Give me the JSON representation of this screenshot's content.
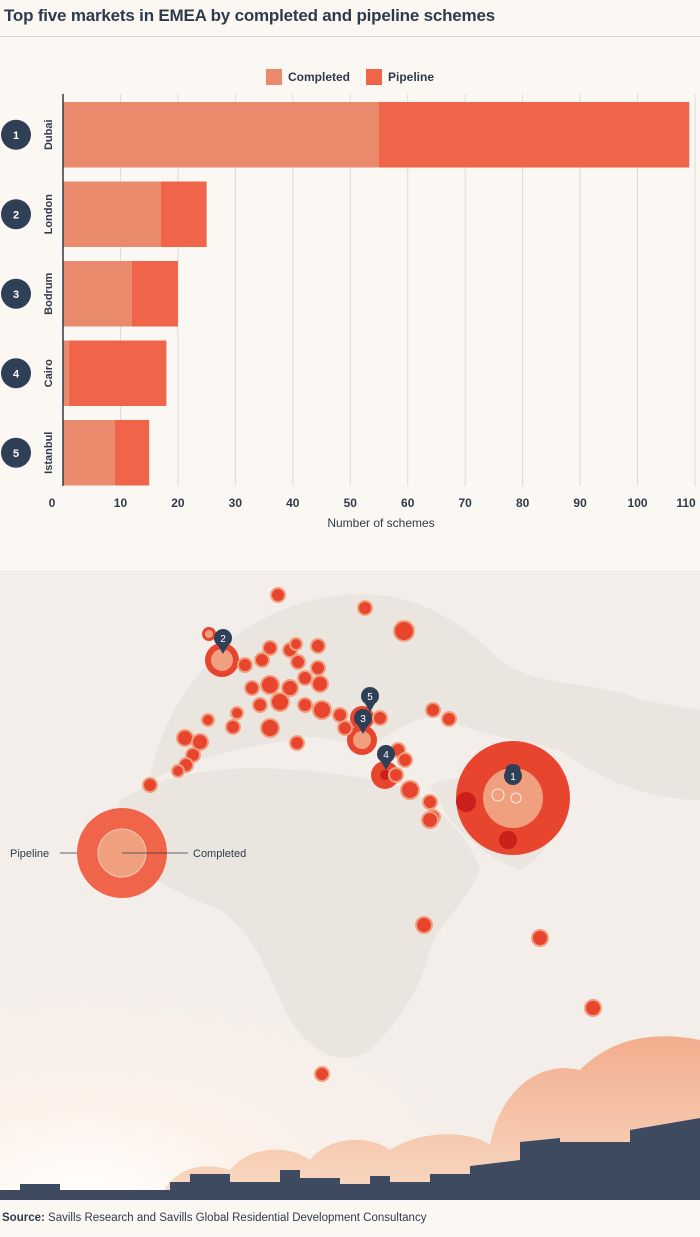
{
  "title": "Top five markets in EMEA by completed and pipeline schemes",
  "legend": {
    "completed": "Completed",
    "pipeline": "Pipeline"
  },
  "colors": {
    "completed": "#e98a6c",
    "pipeline": "#f0644a",
    "badge": "#2f3f56",
    "grid": "#dddbd8"
  },
  "chart_data": {
    "type": "bar",
    "orientation": "horizontal",
    "stacked": true,
    "categories": [
      "Dubai",
      "London",
      "Bodrum",
      "Cairo",
      "Istanbul"
    ],
    "ranks": [
      "1",
      "2",
      "3",
      "4",
      "5"
    ],
    "series": [
      {
        "name": "Completed",
        "values": [
          55,
          17,
          12,
          1,
          9
        ]
      },
      {
        "name": "Pipeline",
        "values": [
          54,
          8,
          8,
          17,
          6
        ]
      }
    ],
    "xlabel": "Number of schemes",
    "xlim": [
      0,
      110
    ],
    "xticks": [
      "0",
      "10",
      "20",
      "30",
      "40",
      "50",
      "60",
      "70",
      "80",
      "90",
      "100",
      "110"
    ],
    "grid": true,
    "legend_position": "top"
  },
  "map": {
    "key_pipeline": "Pipeline",
    "key_completed": "Completed",
    "pins": [
      "1",
      "2",
      "3",
      "4",
      "5"
    ]
  },
  "source": {
    "label": "Source:",
    "text": "Savills Research and Savills Global Residential Development Consultancy"
  }
}
